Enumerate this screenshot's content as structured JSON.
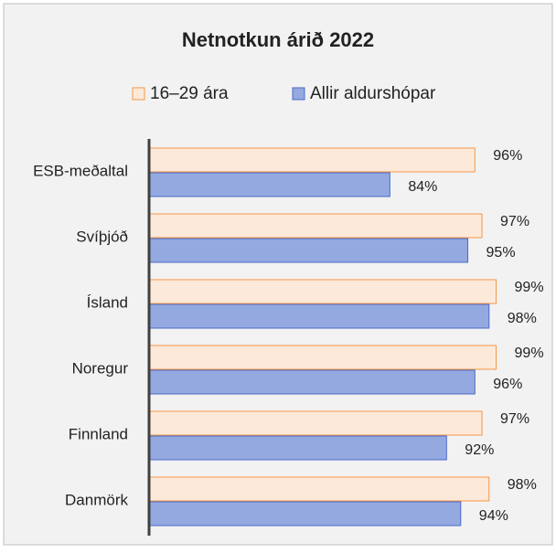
{
  "chart_data": {
    "type": "barh",
    "title": "Netnotkun árið 2022",
    "categories": [
      "ESB-meðaltal",
      "Svíþjóð",
      "Ísland",
      "Noregur",
      "Finnland",
      "Danmörk"
    ],
    "series": [
      {
        "name": "16–29 ára",
        "color": "#fde9d9",
        "stroke": "#f79646",
        "values": [
          96,
          97,
          99,
          99,
          97,
          98
        ],
        "value_labels": [
          "96%",
          "97%",
          "99%",
          "99%",
          "97%",
          "98%"
        ]
      },
      {
        "name": "Allir aldurshópar",
        "color": "#94a9e0",
        "stroke": "#4a6ac8",
        "values": [
          84,
          95,
          98,
          96,
          92,
          94
        ],
        "value_labels": [
          "84%",
          "95%",
          "98%",
          "96%",
          "92%",
          "94%"
        ]
      }
    ],
    "xlim": [
      50,
      105
    ],
    "legend": "top"
  }
}
